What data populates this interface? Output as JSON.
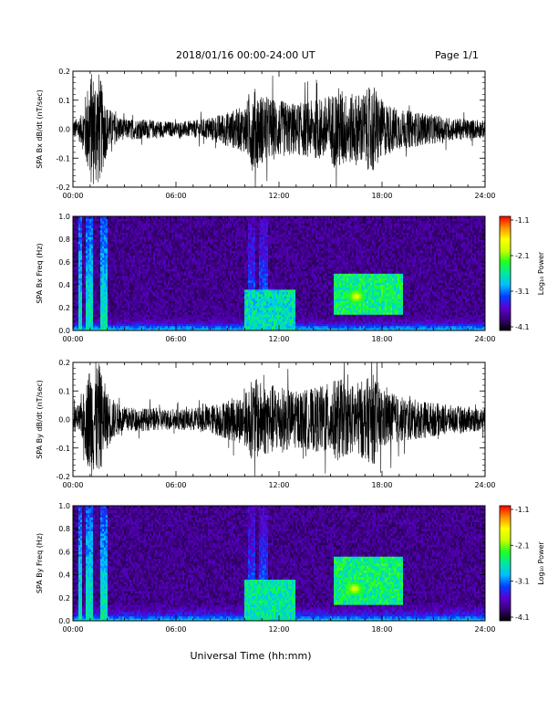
{
  "header": {
    "title": "2018/01/16  00:00-24:00 UT",
    "page": "Page 1/1"
  },
  "xlabel": "Universal Time (hh:mm)",
  "x_ticks": [
    "00:00",
    "06:00",
    "12:00",
    "18:00",
    "24:00"
  ],
  "colorbar": {
    "label": "Log₁₀ Power",
    "ticks": [
      "-1.1",
      "-2.1",
      "-3.1",
      "-4.1"
    ],
    "range": [
      -4.1,
      -1.1
    ],
    "colors": [
      "#000000",
      "#3a0078",
      "#5a00d0",
      "#0040ff",
      "#00c0ff",
      "#00e8a0",
      "#20ff20",
      "#c8ff00",
      "#ffff00",
      "#ff9000",
      "#ff0000"
    ]
  },
  "chart_data": [
    {
      "type": "line",
      "ylabel": "SPA Bx dB/dt (nT/sec)",
      "xlim": [
        0,
        24
      ],
      "ylim": [
        -0.2,
        0.2
      ],
      "y_ticks": [
        "0.2",
        "0.1",
        "0.0",
        "-0.1",
        "-0.2"
      ],
      "series": [
        {
          "x": [
            0,
            0.5,
            1.0,
            1.5,
            2.0,
            2.5,
            3,
            4,
            5,
            6,
            7,
            8,
            9,
            10,
            10.5,
            11,
            12,
            13,
            14,
            15,
            15.5,
            16,
            17,
            17.5,
            18,
            19,
            20,
            21,
            22,
            23,
            24
          ],
          "amplitude": [
            0.03,
            0.05,
            0.2,
            0.2,
            0.08,
            0.05,
            0.035,
            0.035,
            0.03,
            0.025,
            0.03,
            0.04,
            0.06,
            0.08,
            0.15,
            0.12,
            0.1,
            0.09,
            0.1,
            0.12,
            0.15,
            0.12,
            0.13,
            0.16,
            0.1,
            0.07,
            0.06,
            0.05,
            0.04,
            0.035,
            0.03
          ]
        }
      ]
    },
    {
      "type": "heatmap",
      "ylabel": "SPA Bx Freq (Hz)",
      "xlim": [
        0,
        24
      ],
      "ylim": [
        0.0,
        1.0
      ],
      "y_ticks": [
        "1.0",
        "0.8",
        "0.6",
        "0.4",
        "0.2",
        "0.0"
      ],
      "value_label": "Log₁₀ Power",
      "value_range": [
        -4.1,
        -1.1
      ],
      "features": [
        {
          "kind": "broadband_bursts",
          "times_hr": [
            0.4,
            0.9,
            1.1,
            1.7,
            1.9
          ],
          "level": -2.6
        },
        {
          "kind": "background_low_freq",
          "fmax": 0.15,
          "level": -3.3
        },
        {
          "kind": "broadband_bursts",
          "times_hr": [
            10.3,
            10.5,
            11.0,
            11.2
          ],
          "level": -3.0
        },
        {
          "kind": "activity_band",
          "t_start": 10,
          "t_end": 13,
          "fmax": 0.35,
          "level": -2.7
        },
        {
          "kind": "activity_band",
          "t_start": 15.2,
          "t_end": 19.2,
          "fmin": 0.15,
          "fmax": 0.5,
          "level": -2.5
        },
        {
          "kind": "peak",
          "t": 16.5,
          "f": 0.3,
          "level": -1.8
        }
      ]
    },
    {
      "type": "line",
      "ylabel": "SPA By dB/dt (nT/sec)",
      "xlim": [
        0,
        24
      ],
      "ylim": [
        -0.2,
        0.2
      ],
      "y_ticks": [
        "0.2",
        "0.1",
        "0.0",
        "-0.1",
        "-0.2"
      ],
      "series": [
        {
          "x": [
            0,
            0.5,
            1.0,
            1.5,
            2.0,
            2.5,
            3,
            4,
            5,
            6,
            7,
            8,
            9,
            10,
            10.5,
            11,
            12,
            13,
            14,
            15,
            15.5,
            16,
            17,
            17.5,
            18,
            19,
            20,
            21,
            22,
            23,
            24
          ],
          "amplitude": [
            0.04,
            0.06,
            0.2,
            0.2,
            0.1,
            0.06,
            0.045,
            0.04,
            0.04,
            0.035,
            0.04,
            0.05,
            0.07,
            0.09,
            0.15,
            0.13,
            0.12,
            0.1,
            0.11,
            0.13,
            0.15,
            0.12,
            0.14,
            0.16,
            0.11,
            0.08,
            0.07,
            0.06,
            0.05,
            0.045,
            0.04
          ]
        }
      ]
    },
    {
      "type": "heatmap",
      "ylabel": "SPA By Freq (Hz)",
      "xlim": [
        0,
        24
      ],
      "ylim": [
        0.0,
        1.0
      ],
      "y_ticks": [
        "1.0",
        "0.8",
        "0.6",
        "0.4",
        "0.2",
        "0.0"
      ],
      "value_label": "Log₁₀ Power",
      "value_range": [
        -4.1,
        -1.1
      ],
      "features": [
        {
          "kind": "broadband_bursts",
          "times_hr": [
            0.4,
            0.9,
            1.1,
            1.7,
            1.9
          ],
          "level": -2.6
        },
        {
          "kind": "background_low_freq",
          "fmax": 0.15,
          "level": -3.2
        },
        {
          "kind": "broadband_bursts",
          "times_hr": [
            10.3,
            10.5,
            11.0,
            11.2
          ],
          "level": -3.0
        },
        {
          "kind": "activity_band",
          "t_start": 10,
          "t_end": 13,
          "fmax": 0.35,
          "level": -2.6
        },
        {
          "kind": "activity_band",
          "t_start": 15.2,
          "t_end": 19.2,
          "fmin": 0.15,
          "fmax": 0.55,
          "level": -2.5
        },
        {
          "kind": "peak",
          "t": 16.4,
          "f": 0.28,
          "level": -1.8
        }
      ]
    }
  ]
}
